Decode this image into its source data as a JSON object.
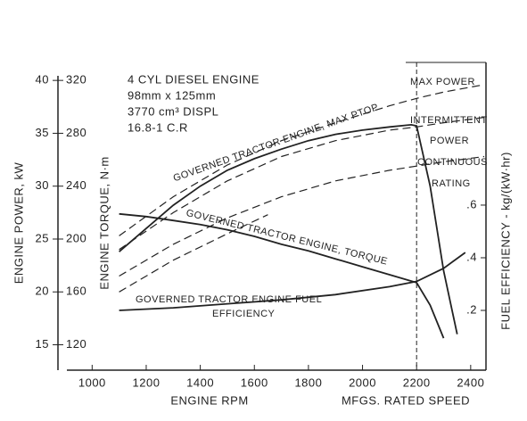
{
  "chart_data": {
    "type": "line",
    "title_lines": [
      "4 CYL DIESEL ENGINE",
      "98mm x 125mm",
      "3770 cm³ DISPL",
      "16.8-1 C.R"
    ],
    "xlabel": "ENGINE RPM",
    "xnote": "MFGS. RATED SPEED",
    "ylabel": "ENGINE POWER, kW",
    "y2label": "ENGINE TORQUE, N·m",
    "y3label": "FUEL EFFICIENCY - kg/(kW·hr)",
    "xlim": [
      900,
      2450
    ],
    "xticks": [
      1000,
      1200,
      1400,
      1600,
      1800,
      2000,
      2200,
      2400
    ],
    "ylim": [
      12.6,
      41.7
    ],
    "yticks": [
      15,
      20,
      25,
      30,
      35,
      40
    ],
    "y2lim": [
      100.8,
      333.6
    ],
    "y2ticks": [
      120,
      160,
      200,
      240,
      280,
      320
    ],
    "y3lim": [
      -0.027,
      1.142
    ],
    "y3ticks": [
      {
        "value": 0.2,
        "label": ".2"
      },
      {
        "value": 0.4,
        "label": ".4"
      },
      {
        "value": 0.6,
        "label": ".6"
      }
    ],
    "rated_speed": 2200,
    "color": "#222222",
    "series": [
      {
        "label": [
          "GOVERNED TRACTOR ENGINE, MAX PTOP"
        ],
        "style": "solid",
        "axis": "y",
        "x": [
          1100,
          1200,
          1300,
          1400,
          1500,
          1600,
          1700,
          1800,
          1900,
          2000,
          2100,
          2180,
          2200,
          2250,
          2300,
          2350
        ],
        "values": [
          23.8,
          26,
          28.2,
          30,
          31.5,
          32.6,
          33.5,
          34.3,
          34.9,
          35.3,
          35.6,
          35.8,
          35.7,
          30,
          22,
          16
        ]
      },
      {
        "label": [
          "GOVERNED TRACTOR ENGINE,  TORQUE"
        ],
        "style": "solid",
        "axis": "y2",
        "x": [
          1100,
          1200,
          1300,
          1400,
          1500,
          1600,
          1700,
          1800,
          1900,
          2000,
          2100,
          2200,
          2250,
          2300
        ],
        "values": [
          219,
          217,
          214,
          211,
          207,
          202,
          196,
          191,
          185,
          179,
          173,
          167,
          150,
          125
        ]
      },
      {
        "label": [
          "GOVERNED TRACTOR ENGINE FUEL",
          "EFFICIENCY"
        ],
        "style": "solid",
        "axis": "y3",
        "x": [
          1100,
          1300,
          1500,
          1700,
          1900,
          2100,
          2200,
          2300,
          2380
        ],
        "values": [
          0.2,
          0.21,
          0.225,
          0.24,
          0.26,
          0.29,
          0.31,
          0.36,
          0.42
        ]
      },
      {
        "label": [
          "MAX POWER"
        ],
        "style": "dashed",
        "axis": "y",
        "x": [
          1100,
          1300,
          1500,
          1700,
          1900,
          2100,
          2200,
          2300,
          2450
        ],
        "values": [
          25.3,
          29,
          32,
          34.3,
          36,
          37.6,
          38.3,
          38.9,
          39.6
        ]
      },
      {
        "label": [
          "INTERMITTENT",
          "POWER"
        ],
        "style": "dashed",
        "axis": "y",
        "x": [
          1100,
          1300,
          1500,
          1700,
          1900,
          2100,
          2200,
          2300,
          2450
        ],
        "values": [
          24,
          27.5,
          30.5,
          32.8,
          34.3,
          35.3,
          35.6,
          36,
          36.5
        ]
      },
      {
        "label": [
          "CONTINUOUS",
          "RATING"
        ],
        "style": "dashed",
        "axis": "y",
        "x": [
          1100,
          1300,
          1500,
          1700,
          1900,
          2100,
          2200,
          2300,
          2450
        ],
        "values": [
          21.5,
          24.5,
          27,
          29,
          30.5,
          31.5,
          31.9,
          32.3,
          32.8
        ]
      },
      {
        "style": "dashed",
        "axis": "y",
        "x": [
          1100,
          1300,
          1500,
          1650
        ],
        "values": [
          20,
          23,
          25.5,
          27.3
        ]
      }
    ]
  }
}
